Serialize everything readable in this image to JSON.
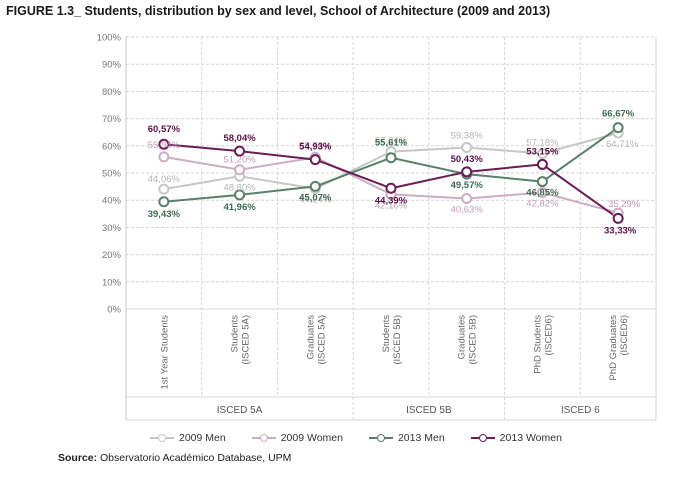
{
  "figure_title": "FIGURE 1.3_ Students, distribution by sex and level, School of Architecture (2009 and 2013)",
  "source": {
    "label": "Source:",
    "text": " Observatorio Académico Database, UPM"
  },
  "colors": {
    "2009 Men": "#c4c7c4",
    "2009 Women": "#cdadc3",
    "2013 Men": "#5a7f6b",
    "2013 Women": "#6a1c55"
  },
  "chart_data": {
    "type": "line",
    "categories": [
      "1st Year  Students",
      "Students (ISCED 5A)",
      "Graduates (ISCED 5A)",
      "Students (ISCED 5B)",
      "Graduates (ISCED 5B)",
      "PhD Students (ISCED6)",
      "PhD Graduates (ISCED6)"
    ],
    "category_lines": [
      [
        "1st Year  Students"
      ],
      [
        "Students",
        "(ISCED 5A)"
      ],
      [
        "Graduates",
        "(ISCED 5A)"
      ],
      [
        "Students",
        "(ISCED 5B)"
      ],
      [
        "Graduates",
        "(ISCED 5B)"
      ],
      [
        "PhD Students",
        "(ISCED6)"
      ],
      [
        "PhD Graduates",
        "(ISCED6)"
      ]
    ],
    "groups": [
      {
        "label": "ISCED 5A",
        "from": 0,
        "to": 2
      },
      {
        "label": "ISCED 5B",
        "from": 3,
        "to": 4
      },
      {
        "label": "ISCED 6",
        "from": 5,
        "to": 6
      }
    ],
    "yticks": [
      "0%",
      "10%",
      "20%",
      "30%",
      "40%",
      "50%",
      "60%",
      "70%",
      "80%",
      "90%",
      "100%"
    ],
    "ylim": [
      0,
      100
    ],
    "grid": true,
    "legend_position": "bottom",
    "series": [
      {
        "name": "2009 Men",
        "values": [
          44.06,
          48.8,
          44.24,
          57.84,
          59.38,
          57.18,
          64.71
        ],
        "labels": [
          "44,06%",
          "48,80%",
          "44,24%",
          "57,84%",
          "59,38%",
          "57,18%",
          "64,71%"
        ]
      },
      {
        "name": "2009 Women",
        "values": [
          55.94,
          51.2,
          55.76,
          42.16,
          40.63,
          42.82,
          35.29
        ],
        "labels": [
          "55,94%",
          "51,20%",
          "55,76%",
          "42,16%",
          "40,63%",
          "42,82%",
          "35,29%"
        ]
      },
      {
        "name": "2013 Men",
        "values": [
          39.43,
          41.96,
          45.07,
          55.61,
          49.57,
          46.85,
          66.67
        ],
        "labels": [
          "39,43%",
          "41,96%",
          "45,07%",
          "55,61%",
          "49,57%",
          "46,85%",
          "66,67%"
        ]
      },
      {
        "name": "2013 Women",
        "values": [
          60.57,
          58.04,
          54.93,
          44.39,
          50.43,
          53.15,
          33.33
        ],
        "labels": [
          "60,57%",
          "58,04%",
          "54,93%",
          "44,39%",
          "50,43%",
          "53,15%",
          "33,33%"
        ]
      }
    ]
  }
}
